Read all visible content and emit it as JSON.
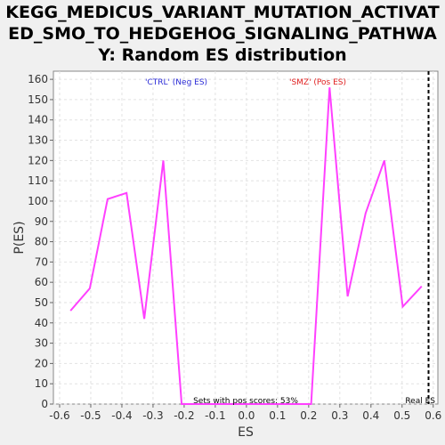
{
  "chart_data": {
    "type": "line",
    "title_lines": [
      "KEGG_MEDICUS_VARIANT_MUTATION_ACTIVAT",
      "ED_SMO_TO_HEDGEHOG_SIGNALING_PATHWA",
      "Y: Random ES distribution"
    ],
    "xlabel": "ES",
    "ylabel": "P(ES)",
    "xlim": [
      -0.62,
      0.615
    ],
    "ylim": [
      0,
      164
    ],
    "xticks": [
      "-0.6",
      "-0.5",
      "-0.4",
      "-0.3",
      "-0.2",
      "-0.1",
      "0.0",
      "0.1",
      "0.2",
      "0.3",
      "0.4",
      "0.5",
      "0.6"
    ],
    "yticks": [
      "0",
      "10",
      "20",
      "30",
      "40",
      "50",
      "60",
      "70",
      "80",
      "90",
      "100",
      "110",
      "120",
      "130",
      "140",
      "150",
      "160"
    ],
    "grid": true,
    "series": [
      {
        "color": "#ff40ff",
        "x": [
          -0.565,
          -0.503,
          -0.446,
          -0.385,
          -0.328,
          -0.267,
          -0.208,
          0.208,
          0.267,
          0.325,
          0.383,
          0.443,
          0.502,
          0.563
        ],
        "y": [
          46,
          57,
          101,
          104,
          42,
          120,
          0,
          0,
          156,
          53,
          94,
          120,
          48,
          58
        ]
      }
    ],
    "annotations": {
      "neg_label": "'CTRL' (Neg ES)",
      "pos_label": "'SMZ' (Pos ES)",
      "sets_text": "Sets with pos scores: 53%",
      "real_es_label": "Real ES",
      "real_es_value": 0.585,
      "neg_color": "#2b2bd6",
      "pos_color": "#e02020"
    }
  }
}
